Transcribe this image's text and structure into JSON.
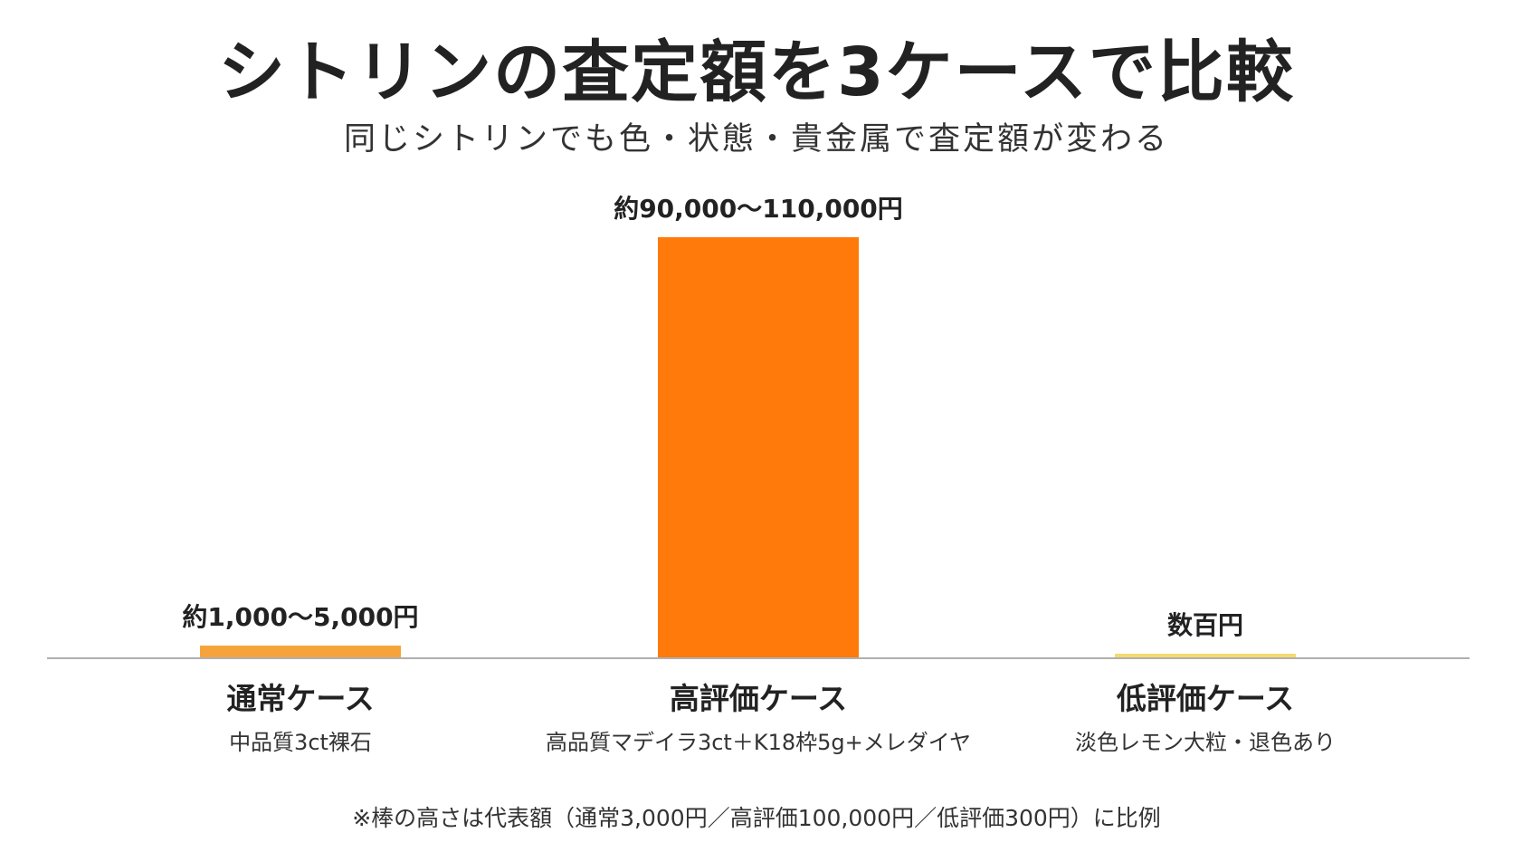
{
  "title": "シトリンの査定額を3ケースで比較",
  "subtitle": "同じシトリンでも色・状態・貴金属で査定額が変わる",
  "footnote": "※棒の高さは代表額（通常3,000円／高評価100,000円／低評価300円）に比例",
  "colors": {
    "background": "#ffffff",
    "axis": "#b0b0b0",
    "text": "#222222"
  },
  "chart_data": {
    "type": "bar",
    "categories": [
      "通常ケース",
      "高評価ケース",
      "低評価ケース"
    ],
    "descriptions": [
      "中品質3ct裸石",
      "高品質マデイラ3ct＋K18枠5g+メレダイヤ",
      "淡色レモン大粒・退色あり"
    ],
    "values": [
      3000,
      100000,
      300
    ],
    "data_labels": [
      "約1,000〜5,000円",
      "約90,000〜110,000円",
      "数百円"
    ],
    "bar_colors": [
      "#F7A33C",
      "#FF7A0A",
      "#F5DB6E"
    ],
    "ylim": [
      0,
      100000
    ],
    "grid": false,
    "legend": "none"
  }
}
